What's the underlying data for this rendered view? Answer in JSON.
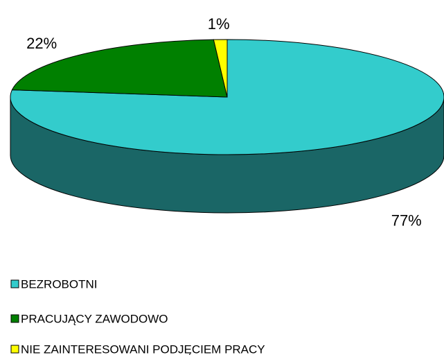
{
  "chart_data": {
    "type": "pie",
    "categories": [
      "BEZROBOTNI",
      "PRACUJĄCY ZAWODOWO",
      "NIE ZAINTERESOWANI PODJĘCIEM PRACY"
    ],
    "values": [
      77,
      22,
      1
    ],
    "value_labels": [
      "77%",
      "22%",
      "1%"
    ],
    "colors": [
      "#33cccc",
      "#008000",
      "#ffff00"
    ],
    "legend": "bottom"
  }
}
